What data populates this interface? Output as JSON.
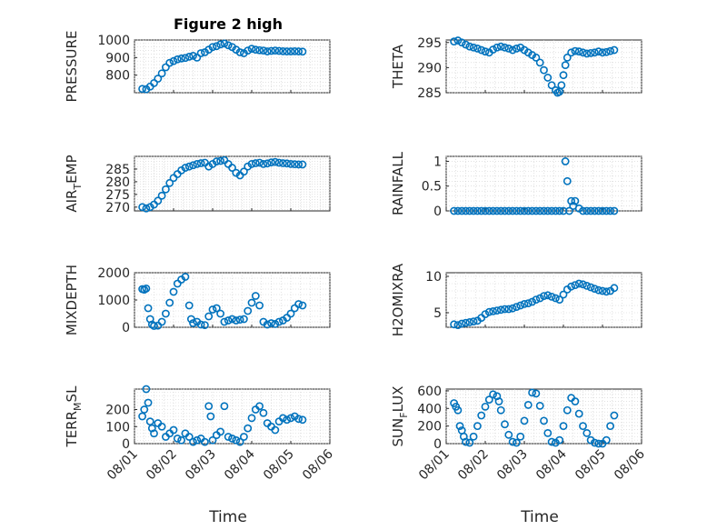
{
  "figure": {
    "title": "Figure 2 high",
    "xlabel": "Time",
    "marker_color": "#0072BD",
    "x_ticks": [
      "08/01",
      "08/02",
      "08/03",
      "08/04",
      "08/05",
      "08/06"
    ]
  },
  "chart_data": [
    {
      "type": "scatter",
      "ylabel": "PRESSURE",
      "ylabel_sub": "",
      "xlim": [
        0,
        5
      ],
      "ylim": [
        700,
        1000
      ],
      "yticks": [
        800,
        900,
        1000
      ],
      "grid": true,
      "x": [
        0.2,
        0.3,
        0.4,
        0.5,
        0.6,
        0.7,
        0.8,
        0.9,
        1.0,
        1.1,
        1.2,
        1.3,
        1.4,
        1.5,
        1.6,
        1.7,
        1.8,
        1.9,
        2.0,
        2.1,
        2.2,
        2.3,
        2.4,
        2.5,
        2.6,
        2.7,
        2.8,
        2.9,
        3.0,
        3.1,
        3.2,
        3.3,
        3.4,
        3.5,
        3.6,
        3.7,
        3.8,
        3.9,
        4.0,
        4.1,
        4.2,
        4.3
      ],
      "y": [
        722,
        720,
        735,
        755,
        780,
        810,
        845,
        870,
        880,
        890,
        895,
        898,
        905,
        910,
        900,
        925,
        930,
        945,
        960,
        965,
        975,
        980,
        970,
        960,
        945,
        930,
        925,
        940,
        950,
        945,
        942,
        940,
        935,
        938,
        940,
        938,
        936,
        935,
        935,
        936,
        935,
        934
      ]
    },
    {
      "type": "scatter",
      "ylabel": "THETA",
      "ylabel_sub": "",
      "xlim": [
        0,
        5
      ],
      "ylim": [
        285,
        295.5
      ],
      "yticks": [
        285,
        290,
        295
      ],
      "grid": true,
      "x": [
        0.2,
        0.3,
        0.4,
        0.5,
        0.6,
        0.7,
        0.8,
        0.9,
        1.0,
        1.1,
        1.2,
        1.3,
        1.4,
        1.5,
        1.6,
        1.7,
        1.8,
        1.9,
        2.0,
        2.1,
        2.2,
        2.3,
        2.4,
        2.5,
        2.6,
        2.7,
        2.8,
        2.85,
        2.9,
        2.95,
        3.0,
        3.05,
        3.1,
        3.2,
        3.3,
        3.4,
        3.5,
        3.6,
        3.7,
        3.8,
        3.9,
        4.0,
        4.1,
        4.2,
        4.3
      ],
      "y": [
        295.2,
        295.4,
        295.0,
        294.6,
        294.2,
        294.0,
        293.8,
        293.5,
        293.2,
        293.0,
        293.6,
        294.0,
        294.2,
        294.0,
        293.8,
        293.5,
        293.8,
        294.0,
        293.5,
        293.0,
        292.5,
        292.0,
        291.0,
        289.5,
        288.0,
        286.5,
        285.5,
        285.0,
        285.2,
        286.5,
        288.5,
        290.5,
        292.0,
        293.0,
        293.3,
        293.2,
        293.0,
        292.8,
        292.9,
        293.0,
        293.2,
        293.0,
        293.1,
        293.3,
        293.5
      ]
    },
    {
      "type": "scatter",
      "ylabel": "AIR",
      "ylabel_sub": "T",
      "ylabel_rest": "EMP",
      "xlim": [
        0,
        5
      ],
      "ylim": [
        268.5,
        290
      ],
      "yticks": [
        270,
        275,
        280,
        285
      ],
      "grid": true,
      "x": [
        0.2,
        0.3,
        0.4,
        0.5,
        0.6,
        0.7,
        0.8,
        0.9,
        1.0,
        1.1,
        1.2,
        1.3,
        1.4,
        1.5,
        1.6,
        1.7,
        1.8,
        1.9,
        2.0,
        2.1,
        2.2,
        2.3,
        2.4,
        2.5,
        2.6,
        2.7,
        2.8,
        2.9,
        3.0,
        3.1,
        3.2,
        3.3,
        3.4,
        3.5,
        3.6,
        3.7,
        3.8,
        3.9,
        4.0,
        4.1,
        4.2,
        4.3
      ],
      "y": [
        270.0,
        269.5,
        270.0,
        271.0,
        272.5,
        274.5,
        277.0,
        279.5,
        281.5,
        283.0,
        284.5,
        285.5,
        286.0,
        286.5,
        287.0,
        287.3,
        287.5,
        286.0,
        287.0,
        288.0,
        288.2,
        288.5,
        287.0,
        285.5,
        283.5,
        282.5,
        284.0,
        286.0,
        287.0,
        287.3,
        287.5,
        287.0,
        287.2,
        287.6,
        287.8,
        287.5,
        287.3,
        287.2,
        287.0,
        286.9,
        286.8,
        286.8
      ]
    },
    {
      "type": "scatter",
      "ylabel": "RAINFALL",
      "ylabel_sub": "",
      "xlim": [
        0,
        5
      ],
      "ylim": [
        0,
        1.1
      ],
      "yticks": [
        0,
        0.5,
        1
      ],
      "grid": true,
      "x": [
        0.2,
        0.3,
        0.4,
        0.5,
        0.6,
        0.7,
        0.8,
        0.9,
        1.0,
        1.1,
        1.2,
        1.3,
        1.4,
        1.5,
        1.6,
        1.7,
        1.8,
        1.9,
        2.0,
        2.1,
        2.2,
        2.3,
        2.4,
        2.5,
        2.6,
        2.7,
        2.8,
        2.9,
        3.0,
        3.05,
        3.1,
        3.15,
        3.2,
        3.25,
        3.3,
        3.4,
        3.5,
        3.6,
        3.7,
        3.8,
        3.9,
        4.0,
        4.1,
        4.2,
        4.3
      ],
      "y": [
        0,
        0,
        0,
        0,
        0,
        0,
        0,
        0,
        0,
        0,
        0,
        0,
        0,
        0,
        0,
        0,
        0,
        0,
        0,
        0,
        0,
        0,
        0,
        0,
        0,
        0,
        0,
        0,
        0,
        1.0,
        0.6,
        0,
        0.2,
        0.1,
        0.2,
        0.05,
        0,
        0,
        0,
        0,
        0,
        0,
        0,
        0,
        0
      ]
    },
    {
      "type": "scatter",
      "ylabel": "MIXDEPTH",
      "ylabel_sub": "",
      "xlim": [
        0,
        5
      ],
      "ylim": [
        0,
        2000
      ],
      "yticks": [
        0,
        1000,
        2000
      ],
      "grid": true,
      "x": [
        0.2,
        0.25,
        0.3,
        0.35,
        0.4,
        0.45,
        0.5,
        0.6,
        0.7,
        0.8,
        0.9,
        1.0,
        1.1,
        1.2,
        1.3,
        1.4,
        1.45,
        1.5,
        1.6,
        1.7,
        1.8,
        1.9,
        2.0,
        2.1,
        2.2,
        2.3,
        2.4,
        2.5,
        2.6,
        2.7,
        2.8,
        2.9,
        3.0,
        3.1,
        3.2,
        3.3,
        3.4,
        3.5,
        3.6,
        3.7,
        3.8,
        3.9,
        4.0,
        4.1,
        4.2,
        4.3
      ],
      "y": [
        1400,
        1380,
        1420,
        700,
        300,
        100,
        50,
        60,
        200,
        500,
        900,
        1300,
        1600,
        1750,
        1850,
        800,
        300,
        150,
        200,
        100,
        80,
        400,
        650,
        700,
        500,
        200,
        250,
        300,
        250,
        280,
        300,
        600,
        900,
        1150,
        800,
        200,
        100,
        150,
        120,
        200,
        250,
        350,
        500,
        700,
        850,
        800
      ]
    },
    {
      "type": "scatter",
      "ylabel": "H2OMIXRA",
      "ylabel_sub": "",
      "xlim": [
        0,
        5
      ],
      "ylim": [
        3,
        10.5
      ],
      "yticks": [
        5,
        10
      ],
      "grid": true,
      "x": [
        0.2,
        0.3,
        0.4,
        0.5,
        0.6,
        0.7,
        0.8,
        0.9,
        1.0,
        1.1,
        1.2,
        1.3,
        1.4,
        1.5,
        1.6,
        1.7,
        1.8,
        1.9,
        2.0,
        2.1,
        2.2,
        2.3,
        2.4,
        2.5,
        2.6,
        2.7,
        2.8,
        2.9,
        3.0,
        3.1,
        3.2,
        3.3,
        3.4,
        3.5,
        3.6,
        3.7,
        3.8,
        3.9,
        4.0,
        4.1,
        4.2,
        4.3
      ],
      "y": [
        3.4,
        3.3,
        3.5,
        3.6,
        3.7,
        3.8,
        3.9,
        4.3,
        4.8,
        5.1,
        5.2,
        5.3,
        5.4,
        5.5,
        5.5,
        5.6,
        5.8,
        6.0,
        6.2,
        6.3,
        6.5,
        6.8,
        7.0,
        7.3,
        7.4,
        7.2,
        7.0,
        6.8,
        7.5,
        8.2,
        8.6,
        8.8,
        9.0,
        8.9,
        8.7,
        8.5,
        8.3,
        8.1,
        8.0,
        7.9,
        8.0,
        8.4
      ]
    },
    {
      "type": "scatter",
      "ylabel": "TERR",
      "ylabel_sub": "M",
      "ylabel_rest": "SL",
      "xlim": [
        0,
        5
      ],
      "ylim": [
        0,
        320
      ],
      "yticks": [
        0,
        100,
        200
      ],
      "grid": true,
      "x": [
        0.2,
        0.25,
        0.3,
        0.35,
        0.4,
        0.45,
        0.5,
        0.6,
        0.7,
        0.8,
        0.9,
        1.0,
        1.1,
        1.2,
        1.3,
        1.4,
        1.5,
        1.6,
        1.7,
        1.8,
        1.9,
        1.95,
        2.0,
        2.1,
        2.2,
        2.3,
        2.4,
        2.5,
        2.6,
        2.7,
        2.8,
        2.9,
        3.0,
        3.1,
        3.2,
        3.3,
        3.4,
        3.5,
        3.6,
        3.7,
        3.8,
        3.9,
        4.0,
        4.1,
        4.2,
        4.3
      ],
      "y": [
        160,
        200,
        320,
        240,
        130,
        90,
        60,
        120,
        100,
        40,
        60,
        80,
        30,
        20,
        60,
        40,
        10,
        20,
        30,
        10,
        220,
        160,
        20,
        50,
        70,
        220,
        40,
        30,
        20,
        10,
        40,
        90,
        150,
        200,
        220,
        180,
        120,
        100,
        80,
        130,
        150,
        140,
        150,
        160,
        145,
        140
      ]
    },
    {
      "type": "scatter",
      "ylabel": "SUN",
      "ylabel_sub": "F",
      "ylabel_rest": "LUX",
      "xlim": [
        0,
        5
      ],
      "ylim": [
        0,
        620
      ],
      "yticks": [
        0,
        200,
        400,
        600
      ],
      "grid": true,
      "x": [
        0.2,
        0.25,
        0.3,
        0.35,
        0.4,
        0.45,
        0.5,
        0.6,
        0.7,
        0.8,
        0.9,
        1.0,
        1.1,
        1.2,
        1.3,
        1.35,
        1.4,
        1.5,
        1.6,
        1.7,
        1.8,
        1.9,
        2.0,
        2.1,
        2.2,
        2.3,
        2.4,
        2.5,
        2.6,
        2.7,
        2.8,
        2.9,
        3.0,
        3.1,
        3.2,
        3.3,
        3.4,
        3.5,
        3.6,
        3.7,
        3.8,
        3.9,
        4.0,
        4.1,
        4.2,
        4.3
      ],
      "y": [
        460,
        420,
        380,
        200,
        150,
        80,
        20,
        10,
        80,
        200,
        320,
        420,
        500,
        560,
        540,
        480,
        380,
        220,
        100,
        20,
        10,
        80,
        260,
        440,
        580,
        570,
        430,
        260,
        120,
        20,
        10,
        40,
        200,
        380,
        520,
        480,
        340,
        200,
        120,
        40,
        10,
        0,
        0,
        40,
        200,
        320
      ]
    }
  ]
}
